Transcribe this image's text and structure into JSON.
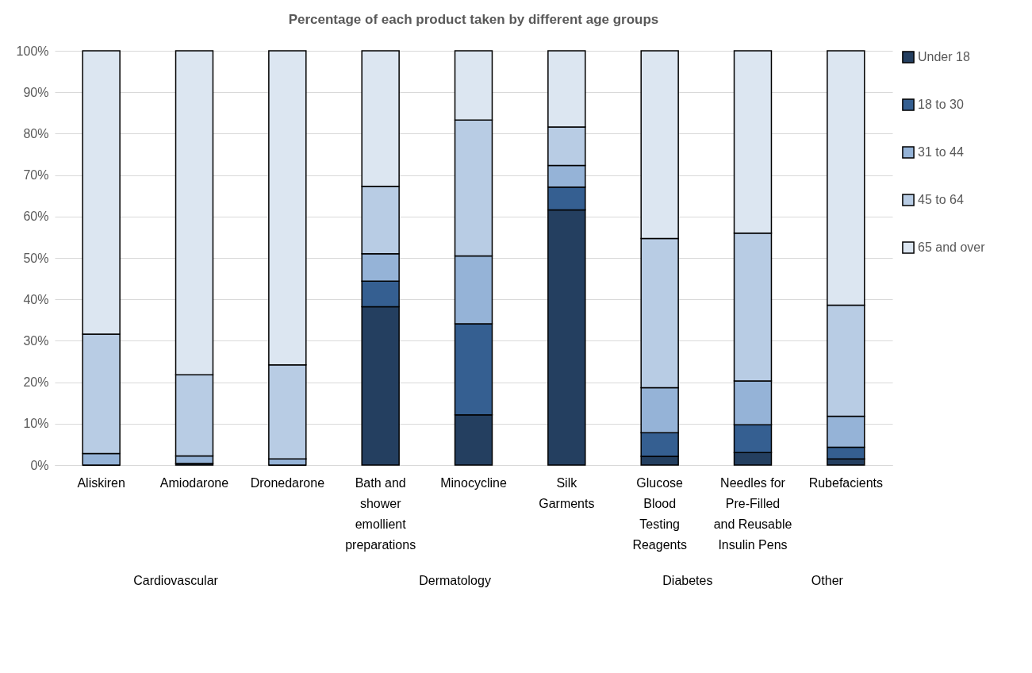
{
  "chart_data": {
    "type": "bar",
    "title": "Percentage of each product taken by different age groups",
    "categories": [
      "Aliskiren",
      "Amiodarone",
      "Dronedarone",
      "Bath and shower emollient preparations",
      "Minocycline",
      "Silk Garments",
      "Glucose Blood Testing Reagents",
      "Needles for Pre-Filled and Reusable Insulin Pens",
      "Rubefacients"
    ],
    "annotations": [
      "Cardiovascular",
      "Dermatology",
      "Diabetes",
      "Other"
    ],
    "stacked": true,
    "series": [
      {
        "name": "Under 18",
        "color": "#243f60",
        "values": [
          0,
          0.4,
          0,
          38.2,
          12.1,
          61.6,
          2.1,
          3,
          1.5
        ]
      },
      {
        "name": "18 to 30",
        "color": "#355f91",
        "values": [
          0,
          0,
          0,
          6.2,
          22,
          5.5,
          5.7,
          6.7,
          2.8
        ]
      },
      {
        "name": "31 to 44",
        "color": "#95b3d7",
        "values": [
          2.8,
          1.8,
          1.5,
          6.6,
          16.4,
          5.2,
          10.9,
          10.6,
          7.5
        ]
      },
      {
        "name": "45 to 64",
        "color": "#b8cce4",
        "values": [
          28.8,
          19.6,
          22.7,
          16.3,
          32.8,
          9.3,
          36,
          35.7,
          26.8
        ]
      },
      {
        "name": "65 and over",
        "color": "#dce6f1",
        "values": [
          68.4,
          78.2,
          75.8,
          32.7,
          16.7,
          18.4,
          45.3,
          44,
          61.4
        ]
      }
    ],
    "ylim": [
      0,
      100
    ],
    "yticks": [
      {
        "value": 0,
        "label": "0%"
      },
      {
        "value": 10,
        "label": "10%"
      },
      {
        "value": 20,
        "label": "20%"
      },
      {
        "value": 30,
        "label": "30%"
      },
      {
        "value": 40,
        "label": "40%"
      },
      {
        "value": 50,
        "label": "50%"
      },
      {
        "value": 60,
        "label": "60%"
      },
      {
        "value": 70,
        "label": "70%"
      },
      {
        "value": 80,
        "label": "80%"
      },
      {
        "value": 90,
        "label": "90%"
      },
      {
        "value": 100,
        "label": "100%"
      }
    ],
    "grid": "y",
    "legend": "right"
  }
}
